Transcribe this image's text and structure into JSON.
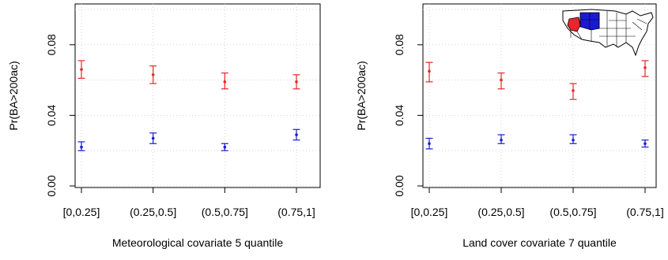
{
  "chart_data": [
    {
      "type": "scatter",
      "title": "",
      "xlabel": "Meteorological covariate 5 quantile",
      "ylabel": "Pr(BA>200ac)",
      "categories": [
        "[0,0.25]",
        "(0.25,0.5]",
        "(0.5,0.75]",
        "(0.75,1]"
      ],
      "yticks": [
        "0.00",
        "0.04",
        "0.08"
      ],
      "ylim": [
        0,
        0.1
      ],
      "grid": true,
      "series": [
        {
          "color": "#e8262b",
          "values": [
            0.066,
            0.063,
            0.059,
            0.059
          ],
          "lower": [
            0.061,
            0.058,
            0.055,
            0.055
          ],
          "upper": [
            0.071,
            0.068,
            0.064,
            0.063
          ]
        },
        {
          "color": "#1a1ad6",
          "values": [
            0.022,
            0.027,
            0.022,
            0.029
          ],
          "lower": [
            0.02,
            0.024,
            0.02,
            0.026
          ],
          "upper": [
            0.025,
            0.03,
            0.024,
            0.032
          ]
        }
      ],
      "inset_map": false
    },
    {
      "type": "scatter",
      "title": "",
      "xlabel": "Land cover covariate 7 quantile",
      "ylabel": "Pr(BA>200ac)",
      "categories": [
        "[0,0.25]",
        "(0.25,0.5]",
        "(0.5,0.75]",
        "(0.75,1]"
      ],
      "yticks": [
        "0.00",
        "0.04",
        "0.08"
      ],
      "ylim": [
        0,
        0.1
      ],
      "grid": true,
      "series": [
        {
          "color": "#e8262b",
          "values": [
            0.065,
            0.06,
            0.054,
            0.067
          ],
          "lower": [
            0.059,
            0.055,
            0.049,
            0.062
          ],
          "upper": [
            0.07,
            0.064,
            0.058,
            0.071
          ]
        },
        {
          "color": "#1a1ad6",
          "values": [
            0.024,
            0.026,
            0.026,
            0.024
          ],
          "lower": [
            0.021,
            0.024,
            0.024,
            0.022
          ],
          "upper": [
            0.027,
            0.029,
            0.029,
            0.026
          ]
        }
      ],
      "inset_map": true,
      "map_colors": {
        "highlight_west": "#e8262b",
        "highlight_plains": "#1a1ad6",
        "states": "#ffffff",
        "borders": "#000000"
      }
    }
  ]
}
